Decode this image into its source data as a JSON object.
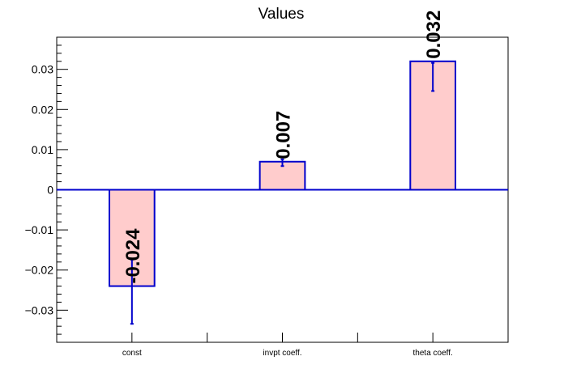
{
  "chart_data": {
    "type": "bar",
    "title": "Values",
    "xlabel": "",
    "ylabel": "",
    "categories": [
      "const",
      "invpt coeff.",
      "theta coeff."
    ],
    "values": [
      -0.024,
      0.007,
      0.032
    ],
    "value_labels": [
      "-0.024",
      "0.007",
      "0.032"
    ],
    "error_bars": [
      {
        "low": -0.0334,
        "high": -0.0174
      },
      {
        "low": 0.0059,
        "high": 0.0076
      },
      {
        "low": 0.0246,
        "high": 0.0316
      }
    ],
    "ylim": [
      -0.038,
      0.038
    ],
    "y_major_ticks": [
      -0.03,
      -0.02,
      -0.01,
      0,
      0.01,
      0.02,
      0.03
    ],
    "y_tick_labels": [
      "−0.03",
      "−0.02",
      "−0.01",
      "0",
      "0.01",
      "0.02",
      "0.03"
    ],
    "y_minor_step": 0.002,
    "grid": false,
    "legend": "none",
    "colors": {
      "bar_fill": "#ffcccc",
      "bar_stroke": "#0000cc",
      "error_bar": "#0000cc",
      "zero_line": "#0000cc",
      "axes": "#000000",
      "text": "#000000"
    }
  }
}
